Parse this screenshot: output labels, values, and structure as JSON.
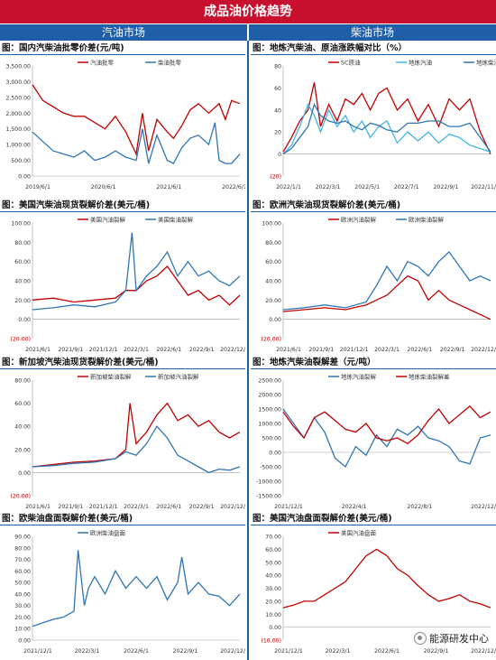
{
  "header": {
    "title": "成品油价格趋势",
    "left_tab": "汽油市场",
    "right_tab": "柴油市场"
  },
  "watermark": "能源研发中心",
  "colors": {
    "red": "#c00000",
    "blue": "#2e75b6",
    "light_blue": "#41b6e6",
    "dark_blue": "#1f5fa8"
  },
  "chart_data": [
    {
      "id": "c1",
      "type": "line",
      "title": "图：国内汽柴油批零价差(元/吨)",
      "yticks": [
        "3,500.00",
        "3,000.00",
        "2,500.00",
        "2,000.00",
        "1,500.00",
        "1,000.00",
        "500.00",
        "0.00"
      ],
      "ylim": [
        0,
        3500
      ],
      "xticks": [
        "2019/6/1",
        "2020/6/1",
        "2021/6/1",
        "2022/6/1"
      ],
      "x_range": [
        "2019/6/1",
        "2023/2/1"
      ],
      "legend": "top",
      "series": [
        {
          "name": "汽油批零",
          "color": "#c00000",
          "x": [
            0,
            0.05,
            0.1,
            0.15,
            0.2,
            0.25,
            0.3,
            0.35,
            0.4,
            0.45,
            0.5,
            0.53,
            0.56,
            0.6,
            0.65,
            0.68,
            0.72,
            0.76,
            0.8,
            0.85,
            0.9,
            0.93,
            0.96,
            1.0
          ],
          "values": [
            2900,
            2400,
            2200,
            2000,
            1900,
            1900,
            1700,
            1500,
            1900,
            1400,
            700,
            2000,
            800,
            1800,
            1400,
            1200,
            1600,
            2100,
            2300,
            2000,
            2300,
            1800,
            2400,
            2300
          ]
        },
        {
          "name": "柴油批零",
          "color": "#2e75b6",
          "x": [
            0,
            0.05,
            0.1,
            0.15,
            0.2,
            0.25,
            0.3,
            0.35,
            0.4,
            0.45,
            0.5,
            0.53,
            0.56,
            0.6,
            0.65,
            0.68,
            0.72,
            0.76,
            0.8,
            0.85,
            0.88,
            0.9,
            0.93,
            0.96,
            1.0
          ],
          "values": [
            1400,
            1100,
            800,
            700,
            600,
            800,
            500,
            600,
            800,
            600,
            500,
            1500,
            400,
            1300,
            500,
            400,
            900,
            1200,
            1300,
            1000,
            1700,
            500,
            400,
            400,
            700
          ]
        }
      ]
    },
    {
      "id": "c2",
      "type": "line",
      "title": "图：地炼汽柴油、原油涨跌幅对比（%）",
      "yticks": [
        "80",
        "60",
        "40",
        "20",
        "0",
        "(20)"
      ],
      "ylim": [
        -20,
        80
      ],
      "xticks": [
        "2022/1/1",
        "2022/3/1",
        "2022/5/1",
        "2022/7/1",
        "2022/9/1",
        "2022/11/1"
      ],
      "x_range": [
        "2022/1/1",
        "2023/1/1"
      ],
      "legend": "top",
      "series": [
        {
          "name": "SC原油",
          "color": "#c00000",
          "x": [
            0,
            0.04,
            0.08,
            0.12,
            0.15,
            0.18,
            0.22,
            0.26,
            0.3,
            0.34,
            0.38,
            0.42,
            0.46,
            0.5,
            0.55,
            0.6,
            0.65,
            0.7,
            0.75,
            0.8,
            0.85,
            0.9,
            0.95,
            1.0
          ],
          "values": [
            2,
            15,
            30,
            40,
            65,
            25,
            45,
            30,
            50,
            45,
            55,
            40,
            55,
            60,
            40,
            50,
            30,
            45,
            25,
            50,
            40,
            50,
            20,
            0
          ]
        },
        {
          "name": "地炼汽油",
          "color": "#41b6e6",
          "x": [
            0,
            0.04,
            0.08,
            0.12,
            0.15,
            0.18,
            0.22,
            0.26,
            0.3,
            0.34,
            0.38,
            0.42,
            0.46,
            0.5,
            0.55,
            0.6,
            0.65,
            0.7,
            0.75,
            0.8,
            0.85,
            0.9,
            0.95,
            1.0
          ],
          "values": [
            0,
            8,
            25,
            45,
            35,
            20,
            40,
            25,
            35,
            20,
            30,
            15,
            25,
            30,
            10,
            20,
            12,
            20,
            10,
            18,
            15,
            8,
            5,
            2
          ]
        },
        {
          "name": "地炼柴油",
          "color": "#2e75b6",
          "x": [
            0,
            0.04,
            0.08,
            0.12,
            0.15,
            0.18,
            0.22,
            0.26,
            0.3,
            0.34,
            0.38,
            0.42,
            0.46,
            0.5,
            0.55,
            0.6,
            0.65,
            0.7,
            0.75,
            0.8,
            0.85,
            0.9,
            0.95,
            1.0
          ],
          "values": [
            0,
            5,
            15,
            25,
            45,
            35,
            30,
            28,
            30,
            25,
            22,
            28,
            26,
            22,
            20,
            28,
            28,
            30,
            30,
            25,
            25,
            28,
            15,
            2
          ]
        }
      ]
    },
    {
      "id": "c3",
      "type": "line",
      "title": "图：美国汽柴油现货裂解价差(美元/桶)",
      "yticks": [
        "100.00",
        "80.00",
        "60.00",
        "40.00",
        "20.00",
        "0.00",
        "(20.00)"
      ],
      "ylim": [
        -20,
        100
      ],
      "xticks": [
        "2021/6/1",
        "2021/9/1",
        "2021/12/1",
        "2022/3/1",
        "2022/6/1",
        "2022/9/1",
        "2022/12/1"
      ],
      "x_range": [
        "2021/6/1",
        "2023/1/1"
      ],
      "legend": "top",
      "series": [
        {
          "name": "美国汽油裂解",
          "color": "#c00000",
          "x": [
            0,
            0.1,
            0.2,
            0.3,
            0.4,
            0.45,
            0.5,
            0.55,
            0.6,
            0.65,
            0.7,
            0.75,
            0.8,
            0.85,
            0.9,
            0.95,
            1.0
          ],
          "values": [
            20,
            22,
            18,
            20,
            22,
            30,
            30,
            40,
            45,
            55,
            40,
            25,
            30,
            20,
            25,
            15,
            25
          ]
        },
        {
          "name": "美国柴油裂解",
          "color": "#2e75b6",
          "x": [
            0,
            0.1,
            0.2,
            0.3,
            0.4,
            0.45,
            0.48,
            0.5,
            0.55,
            0.6,
            0.65,
            0.7,
            0.75,
            0.8,
            0.85,
            0.9,
            0.95,
            1.0
          ],
          "values": [
            10,
            12,
            15,
            13,
            18,
            30,
            90,
            30,
            45,
            55,
            70,
            45,
            60,
            45,
            50,
            40,
            35,
            45
          ]
        }
      ]
    },
    {
      "id": "c4",
      "type": "line",
      "title": "图：欧洲汽柴油现货裂解价差(美元/桶)",
      "yticks": [
        "100.00",
        "80.00",
        "60.00",
        "40.00",
        "20.00",
        "0.00",
        "(20.00)"
      ],
      "ylim": [
        -20,
        100
      ],
      "xticks": [
        "2021/6/1",
        "2021/9/1",
        "2021/12/1",
        "2022/3/1",
        "2022/6/1",
        "2022/9/1",
        "2022/12/1"
      ],
      "x_range": [
        "2021/6/1",
        "2023/1/1"
      ],
      "legend": "top",
      "series": [
        {
          "name": "欧洲汽油裂解",
          "color": "#c00000",
          "x": [
            0,
            0.1,
            0.2,
            0.3,
            0.4,
            0.45,
            0.5,
            0.55,
            0.6,
            0.65,
            0.7,
            0.75,
            0.8,
            0.85,
            0.9,
            0.95,
            1.0
          ],
          "values": [
            8,
            10,
            12,
            10,
            15,
            20,
            25,
            35,
            45,
            40,
            20,
            30,
            20,
            15,
            10,
            5,
            0
          ]
        },
        {
          "name": "欧洲柴油裂解",
          "color": "#2e75b6",
          "x": [
            0,
            0.1,
            0.2,
            0.3,
            0.4,
            0.45,
            0.5,
            0.55,
            0.6,
            0.65,
            0.7,
            0.75,
            0.8,
            0.85,
            0.9,
            0.95,
            1.0
          ],
          "values": [
            10,
            12,
            15,
            12,
            18,
            35,
            55,
            40,
            60,
            55,
            45,
            60,
            70,
            55,
            40,
            45,
            40
          ]
        }
      ]
    },
    {
      "id": "c5",
      "type": "line",
      "title": "图：新加坡汽柴油现货裂解价差(美元/桶)",
      "yticks": [
        "80.00",
        "60.00",
        "40.00",
        "20.00",
        "0.00",
        "(20.00)"
      ],
      "ylim": [
        -20,
        80
      ],
      "xticks": [
        "2021/6/1",
        "2021/9/1",
        "2021/12/1",
        "2022/3/1",
        "2022/6/1",
        "2022/9/1",
        "2022/12/1"
      ],
      "x_range": [
        "2021/6/1",
        "2023/1/1"
      ],
      "legend": "top",
      "series": [
        {
          "name": "新加坡柴油裂解",
          "color": "#c00000",
          "x": [
            0,
            0.1,
            0.2,
            0.3,
            0.4,
            0.45,
            0.47,
            0.5,
            0.55,
            0.6,
            0.65,
            0.7,
            0.75,
            0.8,
            0.85,
            0.9,
            0.95,
            1.0
          ],
          "values": [
            5,
            7,
            9,
            10,
            12,
            20,
            60,
            25,
            35,
            50,
            60,
            45,
            50,
            40,
            45,
            35,
            30,
            35
          ]
        },
        {
          "name": "新加坡汽油裂解",
          "color": "#2e75b6",
          "x": [
            0,
            0.1,
            0.2,
            0.3,
            0.4,
            0.45,
            0.5,
            0.55,
            0.6,
            0.65,
            0.7,
            0.75,
            0.8,
            0.85,
            0.9,
            0.95,
            1.0
          ],
          "values": [
            5,
            6,
            8,
            9,
            12,
            18,
            15,
            25,
            40,
            30,
            15,
            10,
            5,
            0,
            3,
            2,
            5
          ]
        }
      ]
    },
    {
      "id": "c6",
      "type": "line",
      "title": "图：地炼汽柴油裂解差（元/吨）",
      "yticks": [
        "2500.00",
        "2000.00",
        "1500.00",
        "1000.00",
        "500.00",
        "0.00",
        "-500.00",
        "-1000.00",
        "-1500.00"
      ],
      "ylim": [
        -1500,
        2500
      ],
      "xticks": [
        "2021/12/1",
        "2022/4/1",
        "2022/8/1",
        "2022/12/1"
      ],
      "x_range": [
        "2021/12/1",
        "2022/12/31"
      ],
      "legend": "top",
      "series": [
        {
          "name": "地炼汽油裂解",
          "color": "#2e75b6",
          "x": [
            0,
            0.05,
            0.1,
            0.15,
            0.2,
            0.25,
            0.3,
            0.35,
            0.4,
            0.45,
            0.5,
            0.55,
            0.6,
            0.65,
            0.7,
            0.75,
            0.8,
            0.85,
            0.9,
            0.95,
            1.0
          ],
          "values": [
            1500,
            1000,
            500,
            1200,
            700,
            -200,
            -500,
            200,
            -100,
            600,
            200,
            800,
            600,
            900,
            500,
            400,
            200,
            -300,
            -400,
            500,
            600
          ]
        },
        {
          "name": "地炼柴油裂解差",
          "color": "#c00000",
          "x": [
            0,
            0.05,
            0.1,
            0.15,
            0.2,
            0.25,
            0.3,
            0.35,
            0.4,
            0.45,
            0.5,
            0.55,
            0.6,
            0.65,
            0.7,
            0.75,
            0.8,
            0.85,
            0.9,
            0.95,
            1.0
          ],
          "values": [
            1400,
            900,
            500,
            1200,
            1400,
            1100,
            800,
            700,
            1000,
            500,
            400,
            500,
            300,
            600,
            1100,
            1500,
            1000,
            1300,
            1600,
            1200,
            1400
          ]
        }
      ]
    },
    {
      "id": "c7",
      "type": "line",
      "title": "图：欧柴油盘面裂解价差(美元/桶)",
      "yticks": [
        "90.00",
        "80.00",
        "70.00",
        "60.00",
        "50.00",
        "40.00",
        "30.00",
        "20.00",
        "10.00",
        "0.00"
      ],
      "ylim": [
        0,
        90
      ],
      "xticks": [
        "2021/12/1",
        "2022/3/1",
        "2022/6/1",
        "2022/9/1",
        "2022/12/1"
      ],
      "x_range": [
        "2021/12/1",
        "2022/12/31"
      ],
      "legend": "top-center",
      "series": [
        {
          "name": "欧洲柴油盘面",
          "color": "#2e75b6",
          "x": [
            0,
            0.05,
            0.1,
            0.15,
            0.2,
            0.22,
            0.25,
            0.27,
            0.3,
            0.35,
            0.4,
            0.45,
            0.5,
            0.55,
            0.6,
            0.65,
            0.7,
            0.72,
            0.75,
            0.8,
            0.85,
            0.9,
            0.95,
            1.0
          ],
          "values": [
            12,
            15,
            18,
            20,
            25,
            78,
            30,
            45,
            55,
            40,
            60,
            45,
            55,
            45,
            55,
            35,
            50,
            72,
            40,
            50,
            40,
            38,
            30,
            40
          ]
        }
      ]
    },
    {
      "id": "c8",
      "type": "line",
      "title": "图：美国汽油盘面裂解价差(美元/桶)",
      "yticks": [
        "70.00",
        "60.00",
        "50.00",
        "40.00",
        "30.00",
        "20.00",
        "10.00",
        "0.00",
        "(10.00)"
      ],
      "ylim": [
        -10,
        70
      ],
      "xticks": [
        "2021/12/1",
        "2022/3/1",
        "2022/6/1",
        "2022/9/1",
        "2022/12/1"
      ],
      "x_range": [
        "2021/12/1",
        "2022/12/31"
      ],
      "legend": "top-center",
      "series": [
        {
          "name": "美国汽油盘面",
          "color": "#c00000",
          "x": [
            0,
            0.05,
            0.1,
            0.15,
            0.2,
            0.25,
            0.3,
            0.35,
            0.4,
            0.45,
            0.5,
            0.55,
            0.6,
            0.65,
            0.7,
            0.75,
            0.8,
            0.85,
            0.9,
            0.95,
            1.0
          ],
          "values": [
            15,
            17,
            20,
            20,
            25,
            30,
            35,
            45,
            55,
            60,
            55,
            45,
            40,
            32,
            25,
            20,
            22,
            25,
            20,
            18,
            15
          ]
        }
      ]
    }
  ]
}
